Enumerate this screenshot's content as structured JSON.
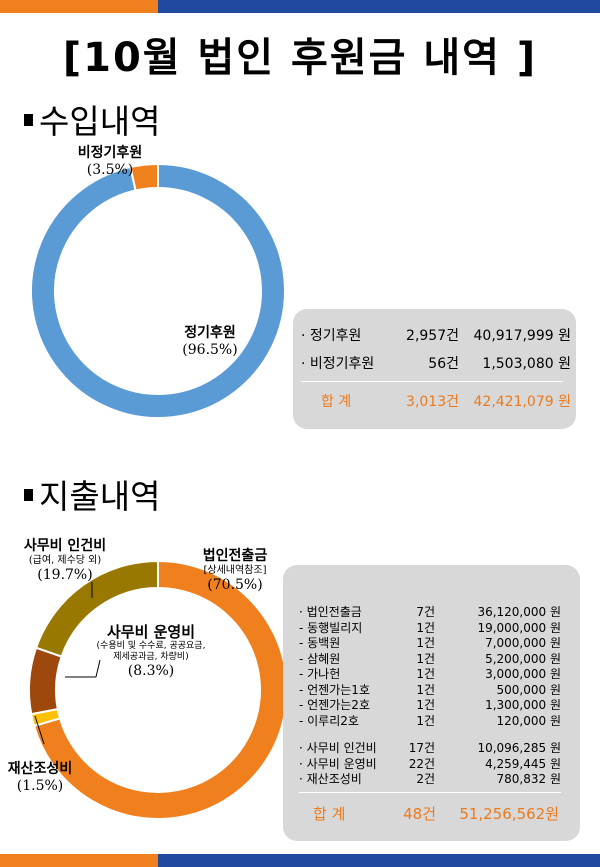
{
  "page": {
    "title": "[10월 법인 후원금 내역 ]",
    "colors": {
      "orange": "#f07f1e",
      "blue": "#1f4aa0",
      "donut_blue": "#5b9bd5",
      "olive": "#997800",
      "brown": "#9e480e",
      "yellow": "#ffc000"
    }
  },
  "income": {
    "heading": "수입내역",
    "chart_data": {
      "type": "pie",
      "title": "수입내역",
      "categories": [
        "정기후원",
        "비정기후원"
      ],
      "values": [
        96.5,
        3.5
      ],
      "labels": [
        {
          "name": "정기후원",
          "pct": "(96.5%)"
        },
        {
          "name": "비정기후원",
          "pct": "(3.5%)"
        }
      ]
    },
    "summary": {
      "rows": [
        {
          "label": "· 정기후원",
          "count": "2,957건",
          "amount": "40,917,999 원"
        },
        {
          "label": "· 비정기후원",
          "count": "56건",
          "amount": "1,503,080 원"
        }
      ],
      "total": {
        "label": "합  계",
        "count": "3,013건",
        "amount": "42,421,079 원"
      }
    }
  },
  "expense": {
    "heading": "지출내역",
    "chart_data": {
      "type": "pie",
      "title": "지출내역",
      "categories": [
        "법인전출금",
        "재산조성비",
        "사무비 운영비",
        "사무비 인건비"
      ],
      "values": [
        70.5,
        1.5,
        8.3,
        19.7
      ],
      "labels": [
        {
          "name": "법인전출금",
          "sub": "[상세내역참조]",
          "pct": "(70.5%)"
        },
        {
          "name": "재산조성비",
          "pct": "(1.5%)"
        },
        {
          "name": "사무비 운영비",
          "sub1": "(수용비 및 수수료, 공공요금,",
          "sub2": "제세공과금, 차량비)",
          "pct": "(8.3%)"
        },
        {
          "name": "사무비 인건비",
          "sub": "(급여, 제수당 외)",
          "pct": "(19.7%)"
        }
      ]
    },
    "summary": {
      "rows": [
        {
          "label": "· 법인전출금",
          "count": "7건",
          "amount": "36,120,000 원"
        },
        {
          "label": "-   동행빌리지",
          "count": "1건",
          "amount": "19,000,000 원"
        },
        {
          "label": "-   동백원",
          "count": "1건",
          "amount": "7,000,000 원"
        },
        {
          "label": "-   삼혜원",
          "count": "1건",
          "amount": "5,200,000 원"
        },
        {
          "label": "-   가나헌",
          "count": "1건",
          "amount": "3,000,000 원"
        },
        {
          "label": "-   언젠가는1호",
          "count": "1건",
          "amount": "500,000 원"
        },
        {
          "label": "-   언젠가는2호",
          "count": "1건",
          "amount": "1,300,000 원"
        },
        {
          "label": "-   이루리2호",
          "count": "1건",
          "amount": "120,000 원"
        }
      ],
      "rows2": [
        {
          "label": "· 사무비 인건비",
          "count": "17건",
          "amount": "10,096,285 원"
        },
        {
          "label": "· 사무비 운영비",
          "count": "22건",
          "amount": "4,259,445 원"
        },
        {
          "label": "· 재산조성비",
          "count": "2건",
          "amount": "780,832 원"
        }
      ],
      "total": {
        "label": "합  계",
        "count": "48건",
        "amount": "51,256,562원"
      }
    }
  }
}
